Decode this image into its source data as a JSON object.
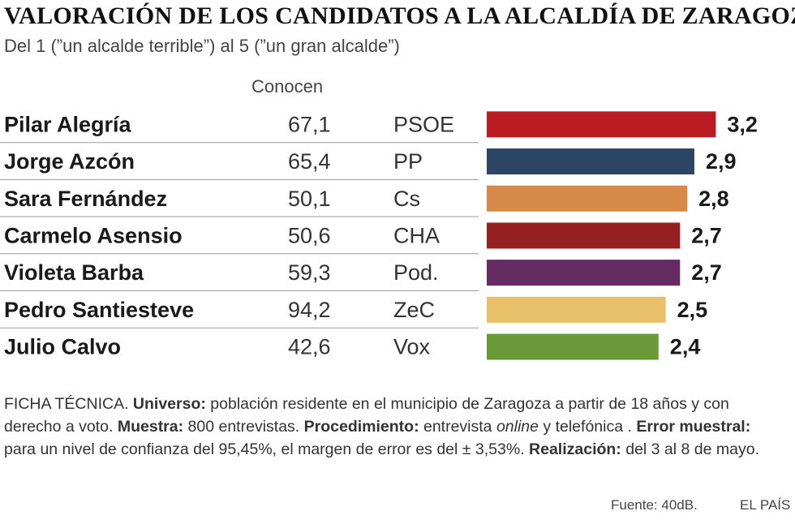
{
  "chart_data": {
    "type": "bar",
    "orientation": "horizontal",
    "title": "VALORACIÓN DE LOS CANDIDATOS A LA ALCALDÍA DE ZARAGOZA",
    "subtitle": "Del 1 (”un alcalde terrible”) al 5 (”un gran alcalde”)",
    "known_header": "Conocen",
    "scale": [
      0,
      4
    ],
    "rows": [
      {
        "name": "Pilar Alegría",
        "known": "67,1",
        "party": "PSOE",
        "value": 3.2,
        "label": "3,2",
        "color": "#b81c22"
      },
      {
        "name": "Jorge Azcón",
        "known": "65,4",
        "party": "PP",
        "value": 2.9,
        "label": "2,9",
        "color": "#2c4565"
      },
      {
        "name": "Sara Fernández",
        "known": "50,1",
        "party": "Cs",
        "value": 2.8,
        "label": "2,8",
        "color": "#d7894a"
      },
      {
        "name": "Carmelo Asensio",
        "known": "50,6",
        "party": "CHA",
        "value": 2.7,
        "label": "2,7",
        "color": "#961f22"
      },
      {
        "name": "Violeta Barba",
        "known": "59,3",
        "party": "Pod.",
        "value": 2.7,
        "label": "2,7",
        "color": "#642b62"
      },
      {
        "name": "Pedro Santiesteve",
        "known": "94,2",
        "party": "ZeC",
        "value": 2.5,
        "label": "2,5",
        "color": "#e8c06a"
      },
      {
        "name": "Julio Calvo",
        "known": "42,6",
        "party": "Vox",
        "value": 2.4,
        "label": "2,4",
        "color": "#6a9a37"
      }
    ]
  },
  "footnote": {
    "intro": "FICHA TÉCNICA. ",
    "universe_label": "Universo:",
    "universe_text": " población residente en el municipio de Zaragoza a partir de 18 años y con derecho a voto. ",
    "sample_label": "Muestra:",
    "sample_text": " 800 entrevistas. ",
    "procedure_label": "Procedimiento:",
    "procedure_text": " entrevista ",
    "procedure_online": "online",
    "procedure_text2": " y telefónica . ",
    "error_label": "Error muestral:",
    "error_text": " para un nivel de confianza del 95,45%, el margen de error es del ± 3,53%. ",
    "date_label": "Realización:",
    "date_text": " del 3 al 8 de mayo."
  },
  "source": "Fuente: 40dB.",
  "brand": "EL PAÍS"
}
